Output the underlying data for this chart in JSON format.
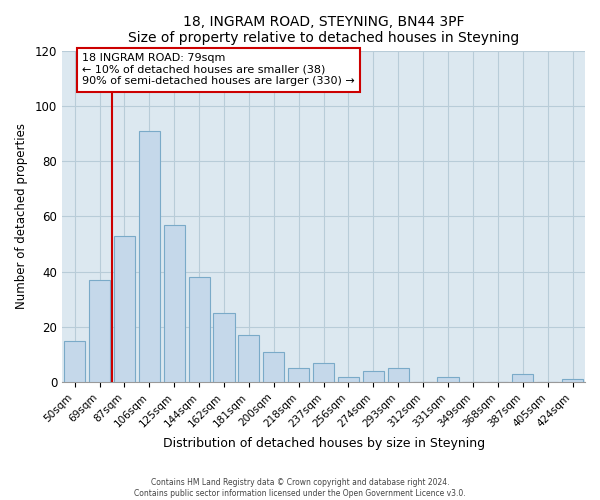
{
  "title": "18, INGRAM ROAD, STEYNING, BN44 3PF",
  "subtitle": "Size of property relative to detached houses in Steyning",
  "xlabel": "Distribution of detached houses by size in Steyning",
  "ylabel": "Number of detached properties",
  "bar_labels": [
    "50sqm",
    "69sqm",
    "87sqm",
    "106sqm",
    "125sqm",
    "144sqm",
    "162sqm",
    "181sqm",
    "200sqm",
    "218sqm",
    "237sqm",
    "256sqm",
    "274sqm",
    "293sqm",
    "312sqm",
    "331sqm",
    "349sqm",
    "368sqm",
    "387sqm",
    "405sqm",
    "424sqm"
  ],
  "bar_heights": [
    15,
    37,
    53,
    91,
    57,
    38,
    25,
    17,
    11,
    5,
    7,
    2,
    4,
    5,
    0,
    2,
    0,
    0,
    3,
    0,
    1
  ],
  "bar_color": "#c5d8ea",
  "bar_edge_color": "#7aaac8",
  "highlight_color": "#cc0000",
  "annotation_line1": "18 INGRAM ROAD: 79sqm",
  "annotation_line2": "← 10% of detached houses are smaller (38)",
  "annotation_line3": "90% of semi-detached houses are larger (330) →",
  "ylim": [
    0,
    120
  ],
  "yticks": [
    0,
    20,
    40,
    60,
    80,
    100,
    120
  ],
  "footer_line1": "Contains HM Land Registry data © Crown copyright and database right 2024.",
  "footer_line2": "Contains public sector information licensed under the Open Government Licence v3.0.",
  "axes_bg_color": "#dce8f0",
  "grid_color": "#b8ccd8"
}
